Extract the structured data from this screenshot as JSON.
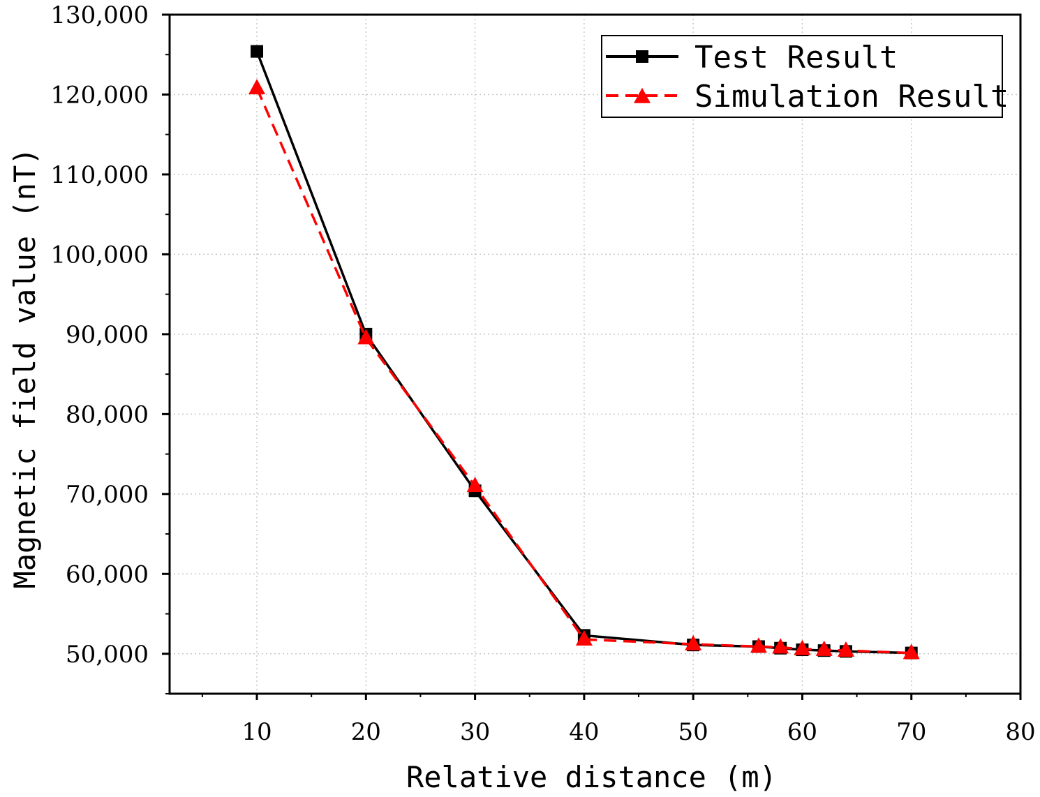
{
  "chart_data": {
    "type": "line",
    "title": "",
    "xlabel": "Relative distance (m)",
    "ylabel": "Magnetic field value (nT)",
    "xlim": [
      2,
      80
    ],
    "ylim": [
      45000,
      130000
    ],
    "grid": true,
    "legend_position": "top-right",
    "x_ticks": [
      10,
      20,
      30,
      40,
      50,
      60,
      70,
      80
    ],
    "x_tick_labels": [
      "10",
      "20",
      "30",
      "40",
      "50",
      "60",
      "70",
      "80"
    ],
    "y_ticks": [
      50000,
      60000,
      70000,
      80000,
      90000,
      100000,
      110000,
      120000,
      130000
    ],
    "y_tick_labels": [
      "50,000",
      "60,000",
      "70,000",
      "80,000",
      "90,000",
      "100,000",
      "110,000",
      "120,000",
      "130,000"
    ],
    "series": [
      {
        "name": "Test Result",
        "color": "#000000",
        "marker": "square",
        "line_style": "solid",
        "x": [
          10,
          20,
          30,
          40,
          50,
          56,
          58,
          60,
          62,
          64,
          70
        ],
        "values": [
          125400,
          90000,
          70400,
          52300,
          51100,
          50900,
          50700,
          50500,
          50400,
          50300,
          50100
        ]
      },
      {
        "name": "Simulation Result",
        "color": "#ff0000",
        "marker": "triangle",
        "line_style": "dashed",
        "x": [
          10,
          20,
          30,
          40,
          50,
          56,
          58,
          60,
          62,
          64,
          70
        ],
        "values": [
          120800,
          89500,
          71000,
          51800,
          51200,
          50900,
          50800,
          50600,
          50500,
          50400,
          50100
        ]
      }
    ]
  }
}
